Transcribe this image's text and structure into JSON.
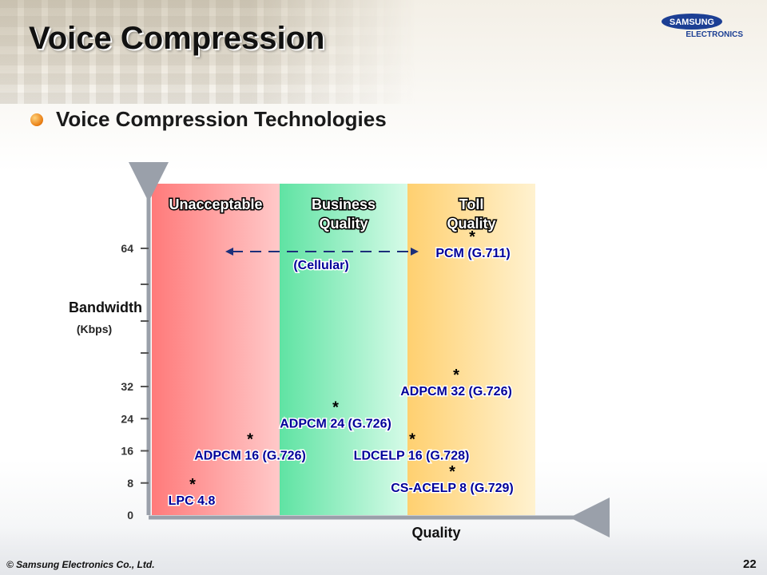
{
  "slide": {
    "title": "Voice Compression",
    "subtitle": "Voice Compression Technologies",
    "copyright": "© Samsung Electronics Co., Ltd.",
    "page_number": "22",
    "logo": {
      "brand": "SAMSUNG",
      "sub": "ELECTRONICS",
      "color": "#1c3f94"
    },
    "bullet_color": "#e87b10"
  },
  "chart_data": {
    "type": "scatter",
    "xlabel": "Quality",
    "ylabel": "Bandwidth",
    "yunit": "(Kbps)",
    "y_ticks": [
      "0",
      "8",
      "16",
      "24",
      "32",
      "64"
    ],
    "zones": [
      {
        "label": [
          "Unacceptable"
        ],
        "color": "#ff8f8f"
      },
      {
        "label": [
          "Business",
          "Quality"
        ],
        "color": "#7fe8b0"
      },
      {
        "label": [
          "Toll",
          "Quality"
        ],
        "color": "#ffd98a"
      }
    ],
    "points": [
      {
        "label": "LPC 4.8",
        "bandwidth": 4.8,
        "zone": "Unacceptable"
      },
      {
        "label": "ADPCM 16 (G.726)",
        "bandwidth": 16,
        "zone": "Unacceptable"
      },
      {
        "label": "ADPCM 24 (G.726)",
        "bandwidth": 24,
        "zone": "Business Quality"
      },
      {
        "label": "LDCELP 16 (G.728)",
        "bandwidth": 16,
        "zone": "Toll Quality"
      },
      {
        "label": "ADPCM 32 (G.726)",
        "bandwidth": 32,
        "zone": "Toll Quality"
      },
      {
        "label": "CS-ACELP 8 (G.729)",
        "bandwidth": 8,
        "zone": "Toll Quality"
      },
      {
        "label": "PCM (G.711)",
        "bandwidth": 64,
        "zone": "Toll Quality"
      }
    ],
    "annotations": [
      {
        "label": "(Cellular)",
        "type": "double-arrow"
      }
    ],
    "marker": "*"
  }
}
